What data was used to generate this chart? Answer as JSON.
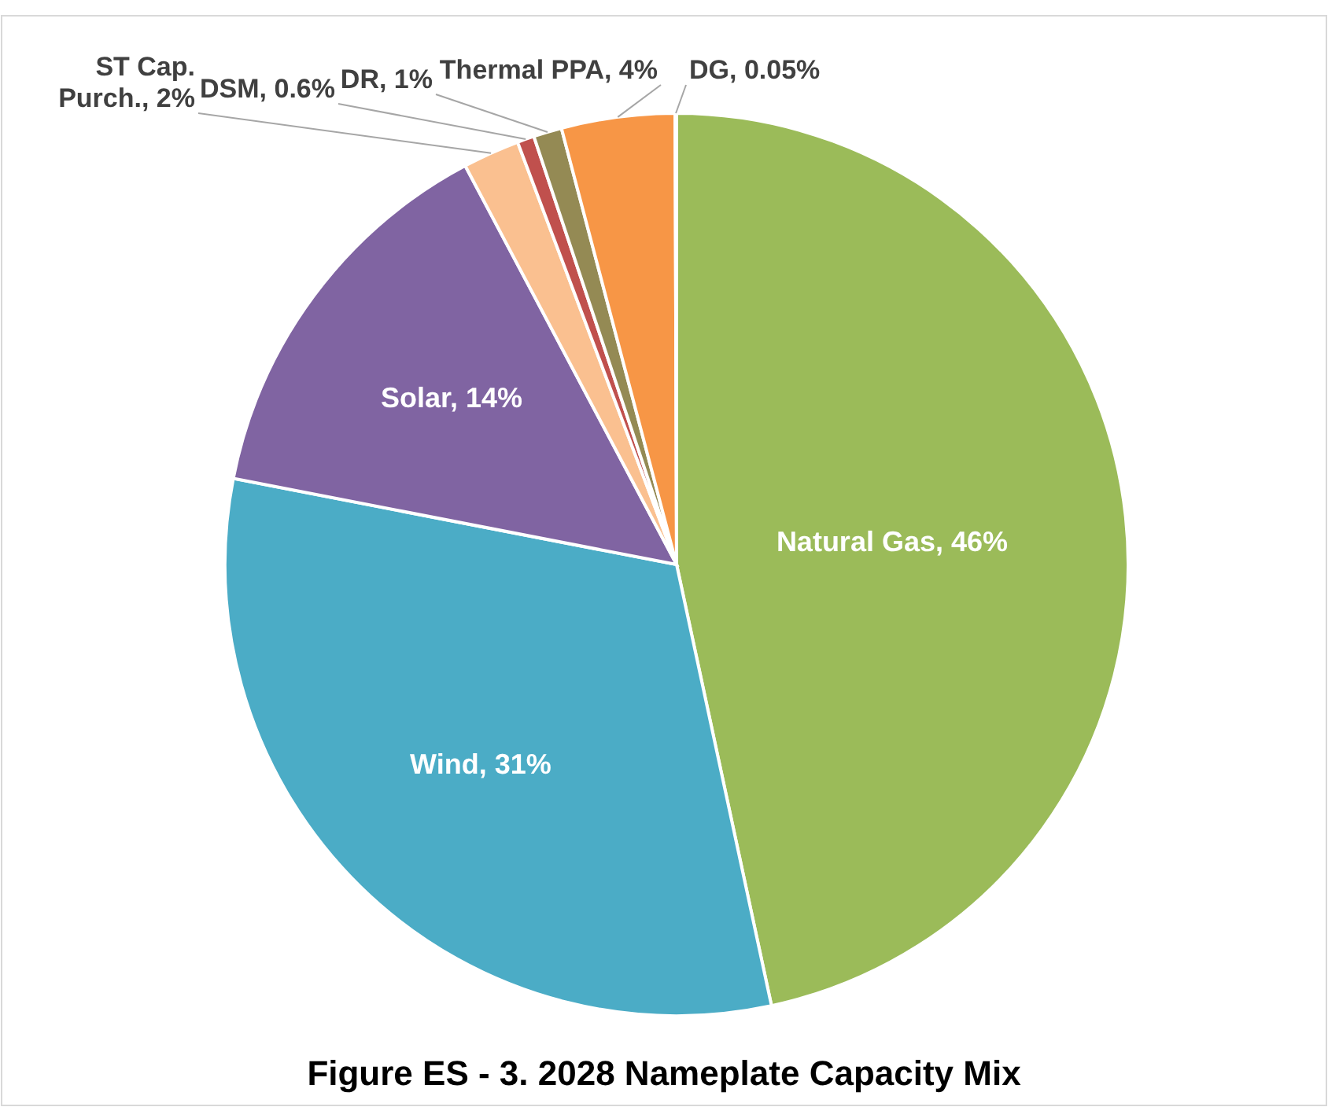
{
  "chart_data": {
    "type": "pie",
    "title": "Figure ES - 3. 2028 Nameplate Capacity Mix",
    "categories": [
      "Natural Gas",
      "Wind",
      "Solar",
      "ST Cap. Purch.",
      "DSM",
      "DR",
      "Thermal PPA",
      "DG"
    ],
    "data_labels": true,
    "values": [
      46,
      31,
      14,
      2,
      0.6,
      1,
      4,
      0.05
    ],
    "value_labels": [
      "46%",
      "31%",
      "14%",
      "2%",
      "0.6%",
      "1%",
      "4%",
      "0.05%"
    ],
    "colors": [
      "#9bbb59",
      "#4bacc6",
      "#8064a2",
      "#fac090",
      "#c0504d",
      "#948a54",
      "#f79646",
      "#a5a5a5"
    ]
  }
}
